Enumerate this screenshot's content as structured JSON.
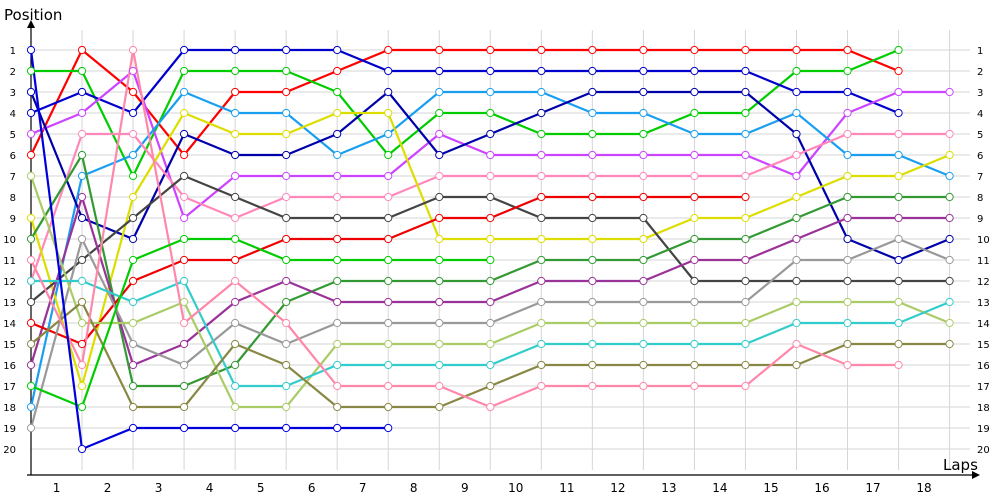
{
  "chart_data": {
    "type": "line",
    "title": "Position",
    "xlabel": "Laps",
    "ylabel": "Position",
    "x_tick_labels": [
      "1",
      "2",
      "3",
      "4",
      "5",
      "6",
      "7",
      "8",
      "9",
      "10",
      "11",
      "12",
      "13",
      "14",
      "15",
      "16",
      "17",
      "18"
    ],
    "y_tick_labels": [
      "1",
      "2",
      "3",
      "4",
      "5",
      "6",
      "7",
      "8",
      "9",
      "10",
      "11",
      "12",
      "13",
      "14",
      "15",
      "16",
      "17",
      "18",
      "19",
      "20"
    ],
    "xlim": [
      0,
      18.4
    ],
    "ylim": [
      1,
      20
    ],
    "grid": true,
    "legend": "none",
    "series": [
      {
        "color": "#ff0000",
        "values": [
          6,
          1,
          3,
          6,
          3,
          3,
          2,
          1,
          1,
          1,
          1,
          1,
          1,
          1,
          1,
          1,
          1,
          2
        ]
      },
      {
        "color": "#00cc00",
        "values": [
          2,
          2,
          7,
          2,
          2,
          2,
          3,
          6,
          4,
          4,
          5,
          5,
          5,
          4,
          4,
          2,
          2,
          1
        ]
      },
      {
        "color": "#0000cc",
        "values": [
          4,
          3,
          4,
          1,
          1,
          1,
          1,
          2,
          2,
          2,
          2,
          2,
          2,
          2,
          2,
          3,
          3,
          4
        ]
      },
      {
        "color": "#cc44ff",
        "values": [
          5,
          4,
          2,
          9,
          7,
          7,
          7,
          7,
          5,
          6,
          6,
          6,
          6,
          6,
          6,
          7,
          4,
          3,
          3
        ]
      },
      {
        "color": "#1a9ff0",
        "values": [
          18,
          7,
          6,
          3,
          4,
          4,
          6,
          5,
          3,
          3,
          3,
          4,
          4,
          5,
          5,
          4,
          6,
          6,
          7
        ]
      },
      {
        "color": "#0000aa",
        "values": [
          3,
          9,
          10,
          5,
          6,
          6,
          5,
          3,
          6,
          5,
          4,
          3,
          3,
          3,
          3,
          5,
          10,
          11,
          10
        ]
      },
      {
        "color": "#ff88bb",
        "values": [
          12,
          5,
          5,
          8,
          9,
          8,
          8,
          8,
          7,
          7,
          7,
          7,
          7,
          7,
          7,
          6,
          5,
          5,
          5
        ]
      },
      {
        "color": "#dddd00",
        "values": [
          9,
          17,
          8,
          4,
          5,
          5,
          4,
          4,
          10,
          10,
          10,
          10,
          10,
          9,
          9,
          8,
          7,
          7,
          6
        ]
      },
      {
        "color": "#444444",
        "values": [
          13,
          11,
          9,
          7,
          8,
          9,
          9,
          9,
          8,
          8,
          9,
          9,
          9,
          12,
          12,
          12,
          12,
          12,
          12
        ]
      },
      {
        "color": "#339933",
        "values": [
          10,
          6,
          17,
          17,
          16,
          13,
          12,
          12,
          12,
          12,
          11,
          11,
          11,
          10,
          10,
          9,
          8,
          8,
          8
        ]
      },
      {
        "color": "#993399",
        "values": [
          16,
          8,
          16,
          15,
          13,
          12,
          13,
          13,
          13,
          13,
          12,
          12,
          12,
          11,
          11,
          10,
          9,
          9,
          9
        ]
      },
      {
        "color": "#ee0000",
        "values": [
          14,
          15,
          12,
          11,
          11,
          10,
          10,
          10,
          9,
          9,
          8,
          8,
          8,
          8,
          8
        ]
      },
      {
        "color": "#999999",
        "values": [
          19,
          10,
          15,
          16,
          14,
          15,
          14,
          14,
          14,
          14,
          13,
          13,
          13,
          13,
          13,
          11,
          11,
          10,
          11
        ]
      },
      {
        "color": "#aacc66",
        "values": [
          7,
          14,
          14,
          13,
          18,
          18,
          15,
          15,
          15,
          15,
          14,
          14,
          14,
          14,
          14,
          13,
          13,
          13,
          14
        ]
      },
      {
        "color": "#33cccc",
        "values": [
          12,
          12,
          13,
          12,
          17,
          17,
          16,
          16,
          16,
          16,
          15,
          15,
          15,
          15,
          15,
          14,
          14,
          14,
          13
        ]
      },
      {
        "color": "#888844",
        "values": [
          15,
          13,
          18,
          18,
          15,
          16,
          18,
          18,
          18,
          17,
          16,
          16,
          16,
          16,
          16,
          16,
          15,
          15,
          15
        ]
      },
      {
        "color": "#ff88aa",
        "values": [
          11,
          16,
          1,
          14,
          12,
          14,
          17,
          17,
          17,
          18,
          17,
          17,
          17,
          17,
          17,
          15,
          16,
          16
        ]
      },
      {
        "color": "#00cc00",
        "values": [
          17,
          18,
          11,
          10,
          10,
          11,
          11,
          11,
          11,
          11
        ]
      },
      {
        "color": "#0000dd",
        "values": [
          1,
          20,
          19,
          19,
          19,
          19,
          19,
          19
        ]
      }
    ]
  }
}
